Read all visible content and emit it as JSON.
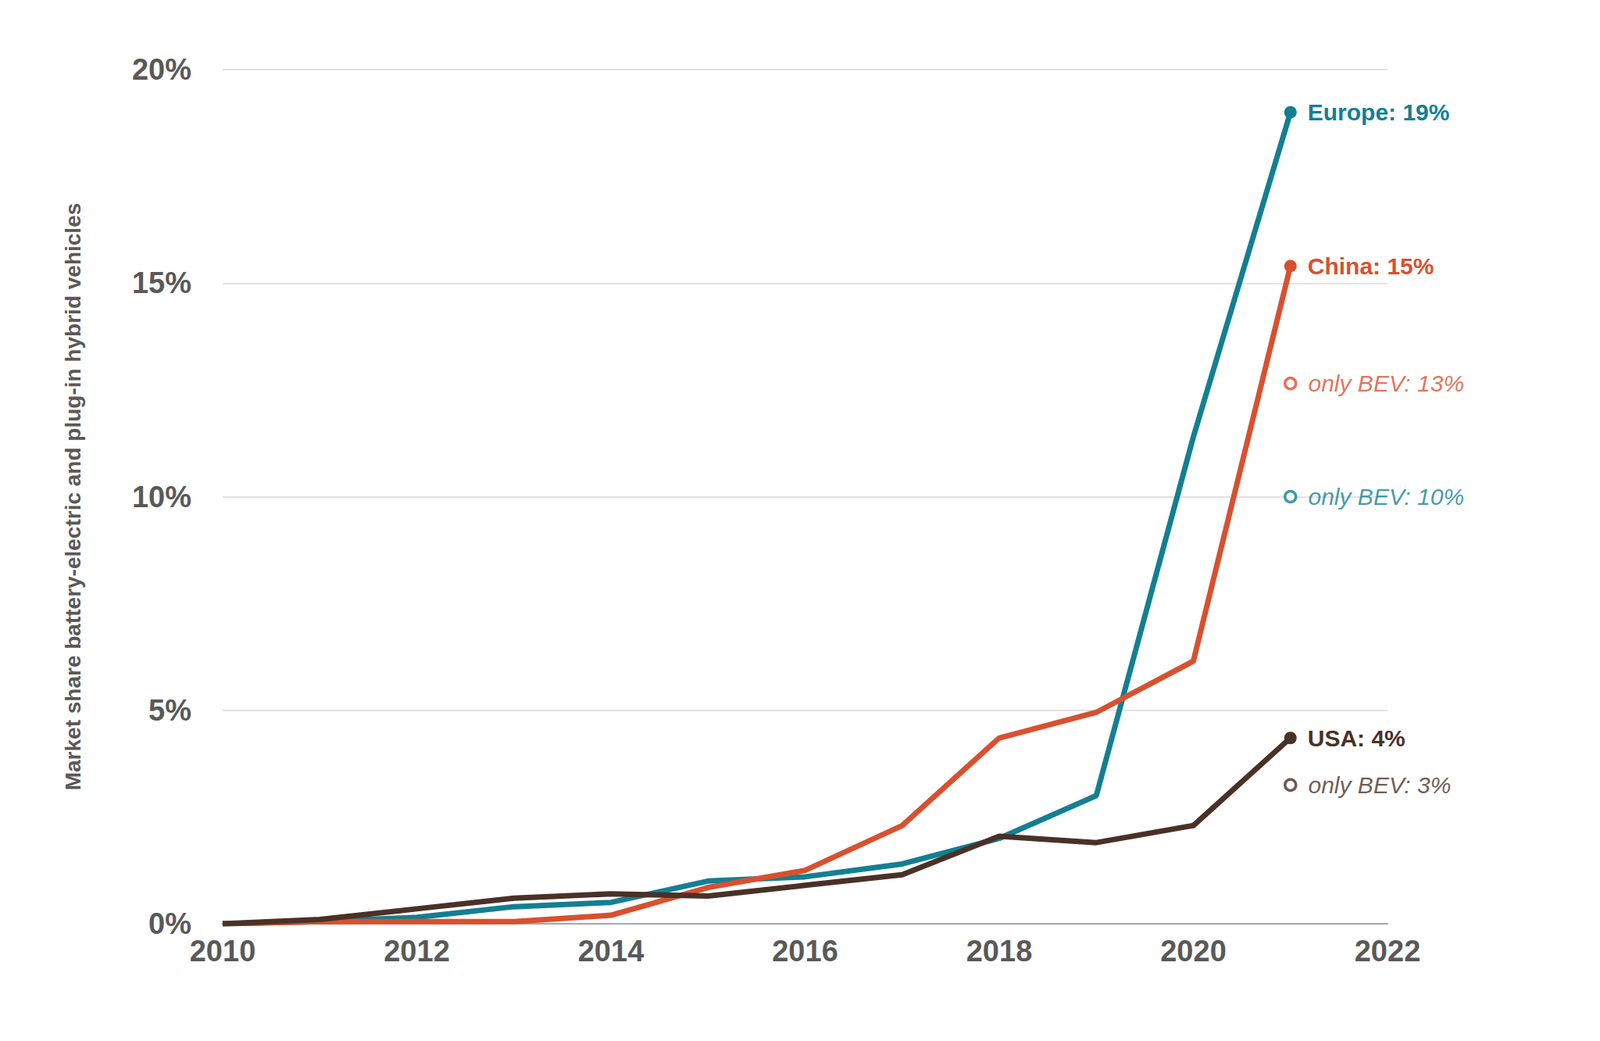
{
  "chart_data": {
    "type": "line",
    "y_label": "Market share battery-electric and plug-in hybrid vehicles",
    "x": [
      2010,
      2011,
      2012,
      2013,
      2014,
      2015,
      2016,
      2017,
      2018,
      2019,
      2020,
      2021
    ],
    "series": [
      {
        "name": "Europe",
        "color": "#137f92",
        "end_label": "Europe: 19%",
        "values": [
          0,
          0.05,
          0.15,
          0.4,
          0.5,
          1.0,
          1.1,
          1.4,
          2.0,
          3.0,
          11.4,
          19.0
        ],
        "bev": {
          "x": 2021,
          "value": 10.0,
          "label": "only BEV: 10%"
        }
      },
      {
        "name": "China",
        "color": "#d9502f",
        "end_label": "China: 15%",
        "values": [
          0,
          0.05,
          0.05,
          0.05,
          0.2,
          0.85,
          1.25,
          2.3,
          4.35,
          4.95,
          6.15,
          15.4
        ],
        "bev": {
          "x": 2021,
          "value": 12.65,
          "label": "only BEV: 13%"
        }
      },
      {
        "name": "USA",
        "color": "#4a3128",
        "end_label": "USA: 4%",
        "values": [
          0,
          0.1,
          0.35,
          0.6,
          0.7,
          0.65,
          0.9,
          1.15,
          2.05,
          1.9,
          2.3,
          4.35
        ],
        "bev": {
          "x": 2021,
          "value": 3.25,
          "label": "only BEV: 3%"
        }
      }
    ],
    "xlim": [
      2010,
      2022
    ],
    "xticks": [
      2010,
      2012,
      2014,
      2016,
      2018,
      2020,
      2022
    ],
    "ylim": [
      0,
      20
    ],
    "yticks": [
      {
        "value": 0,
        "label": "0%"
      },
      {
        "value": 5,
        "label": "5%"
      },
      {
        "value": 10,
        "label": "10%"
      },
      {
        "value": 15,
        "label": "15%"
      },
      {
        "value": 20,
        "label": "20%"
      }
    ],
    "grid": true
  }
}
